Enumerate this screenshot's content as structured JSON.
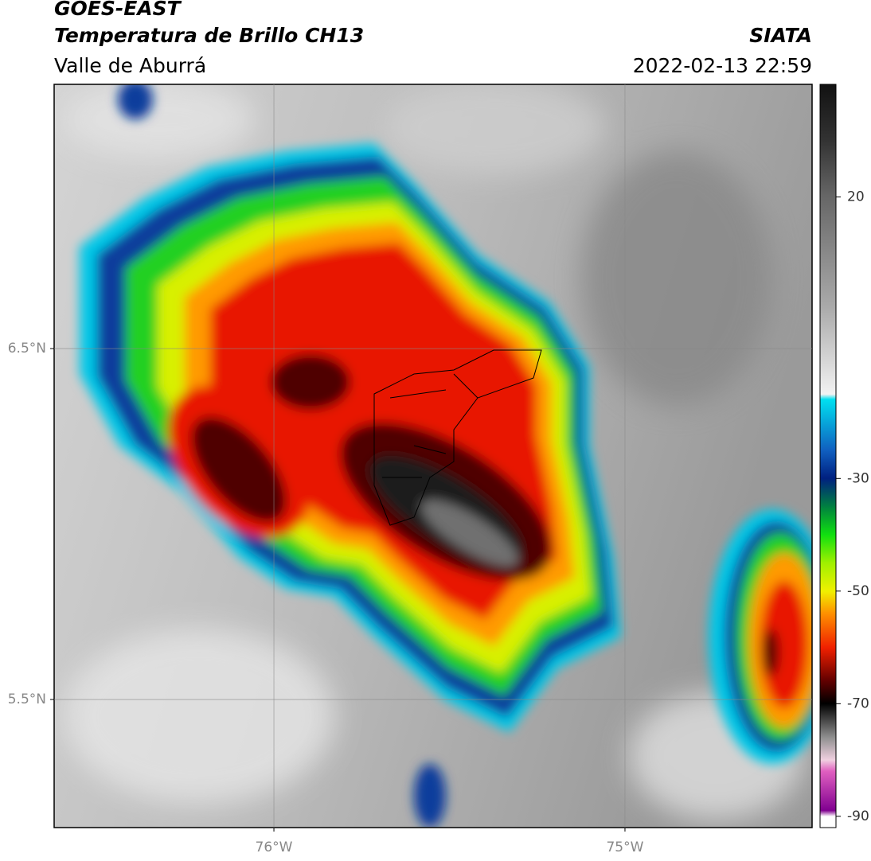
{
  "header": {
    "title": "GOES-EAST",
    "subtitle": "Temperatura de Brillo CH13",
    "location": "Valle de Aburrá",
    "source": "SIATA",
    "datetime": "2022-02-13 22:59"
  },
  "map": {
    "xlim": [
      -76.626,
      -74.467
    ],
    "ylim": [
      5.135,
      7.253
    ],
    "xticks": [
      {
        "value": -76,
        "label": "76°W"
      },
      {
        "value": -75,
        "label": "75°W"
      }
    ],
    "yticks": [
      {
        "value": 6.5,
        "label": "6.5°N"
      },
      {
        "value": 5.5,
        "label": "5.5°N"
      }
    ],
    "grid": true
  },
  "colorbar": {
    "lim": [
      -92,
      40
    ],
    "ticks": [
      20,
      -30,
      -50,
      -70,
      -90
    ]
  }
}
